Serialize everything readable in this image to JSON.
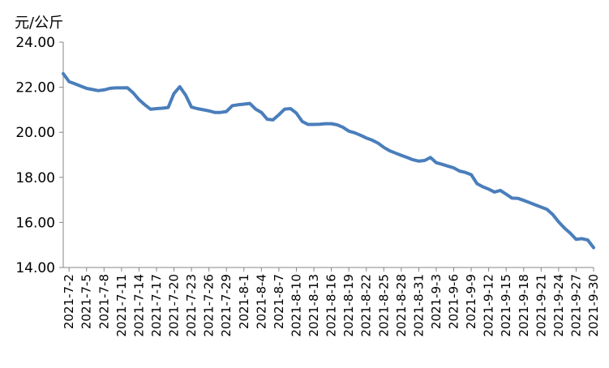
{
  "chart_data": {
    "type": "line",
    "unit_label": "元/公斤",
    "title": "",
    "xlabel": "",
    "ylabel": "",
    "ylim": [
      14.0,
      24.0
    ],
    "yticks": [
      "14.00",
      "16.00",
      "18.00",
      "20.00",
      "22.00",
      "24.00"
    ],
    "grid": false,
    "legend": "none",
    "line_color": "#4A7EBB",
    "xtick_labels": [
      "2021-7-2",
      "2021-7-5",
      "2021-7-8",
      "2021-7-11",
      "2021-7-14",
      "2021-7-17",
      "2021-7-20",
      "2021-7-23",
      "2021-7-26",
      "2021-7-29",
      "2021-8-1",
      "2021-8-4",
      "2021-8-7",
      "2021-8-10",
      "2021-8-13",
      "2021-8-16",
      "2021-8-19",
      "2021-8-22",
      "2021-8-25",
      "2021-8-28",
      "2021-8-31",
      "2021-9-3",
      "2021-9-6",
      "2021-9-9",
      "2021-9-12",
      "2021-9-15",
      "2021-9-18",
      "2021-9-21",
      "2021-9-24",
      "2021-9-27",
      "2021-9-30"
    ],
    "series": [
      {
        "x": [
          "2021-7-1",
          "2021-7-2",
          "2021-7-3",
          "2021-7-4",
          "2021-7-5",
          "2021-7-6",
          "2021-7-7",
          "2021-7-8",
          "2021-7-9",
          "2021-7-10",
          "2021-7-11",
          "2021-7-12",
          "2021-7-13",
          "2021-7-14",
          "2021-7-15",
          "2021-7-16",
          "2021-7-17",
          "2021-7-18",
          "2021-7-19",
          "2021-7-20",
          "2021-7-21",
          "2021-7-22",
          "2021-7-23",
          "2021-7-24",
          "2021-7-25",
          "2021-7-26",
          "2021-7-27",
          "2021-7-28",
          "2021-7-29",
          "2021-7-30",
          "2021-7-31",
          "2021-8-1",
          "2021-8-2",
          "2021-8-3",
          "2021-8-4",
          "2021-8-5",
          "2021-8-6",
          "2021-8-7",
          "2021-8-8",
          "2021-8-9",
          "2021-8-10",
          "2021-8-11",
          "2021-8-12",
          "2021-8-13",
          "2021-8-14",
          "2021-8-15",
          "2021-8-16",
          "2021-8-17",
          "2021-8-18",
          "2021-8-19",
          "2021-8-20",
          "2021-8-21",
          "2021-8-22",
          "2021-8-23",
          "2021-8-24",
          "2021-8-25",
          "2021-8-26",
          "2021-8-27",
          "2021-8-28",
          "2021-8-29",
          "2021-8-30",
          "2021-8-31",
          "2021-9-1",
          "2021-9-2",
          "2021-9-3",
          "2021-9-4",
          "2021-9-5",
          "2021-9-6",
          "2021-9-7",
          "2021-9-8",
          "2021-9-9",
          "2021-9-10",
          "2021-9-11",
          "2021-9-12",
          "2021-9-13",
          "2021-9-14",
          "2021-9-15",
          "2021-9-16",
          "2021-9-17",
          "2021-9-18",
          "2021-9-19",
          "2021-9-20",
          "2021-9-21",
          "2021-9-22",
          "2021-9-23",
          "2021-9-24",
          "2021-9-25",
          "2021-9-26",
          "2021-9-27",
          "2021-9-28",
          "2021-9-29",
          "2021-9-30"
        ],
        "values": [
          22.6,
          22.25,
          22.15,
          22.05,
          21.95,
          21.9,
          21.85,
          21.88,
          21.95,
          21.97,
          21.97,
          21.98,
          21.75,
          21.45,
          21.22,
          21.02,
          21.05,
          21.07,
          21.1,
          21.72,
          22.02,
          21.65,
          21.12,
          21.05,
          21.0,
          20.95,
          20.88,
          20.88,
          20.92,
          21.18,
          21.22,
          21.25,
          21.28,
          21.03,
          20.88,
          20.58,
          20.55,
          20.78,
          21.03,
          21.05,
          20.85,
          20.48,
          20.35,
          20.35,
          20.36,
          20.38,
          20.38,
          20.33,
          20.22,
          20.05,
          19.98,
          19.87,
          19.75,
          19.65,
          19.52,
          19.33,
          19.18,
          19.08,
          18.98,
          18.88,
          18.78,
          18.72,
          18.75,
          18.88,
          18.65,
          18.58,
          18.5,
          18.42,
          18.28,
          18.22,
          18.12,
          17.72,
          17.58,
          17.48,
          17.35,
          17.42,
          17.25,
          17.08,
          17.07,
          16.98,
          16.88,
          16.78,
          16.68,
          16.58,
          16.35,
          16.02,
          15.75,
          15.52,
          15.25,
          15.28,
          15.22,
          14.88
        ]
      }
    ]
  }
}
